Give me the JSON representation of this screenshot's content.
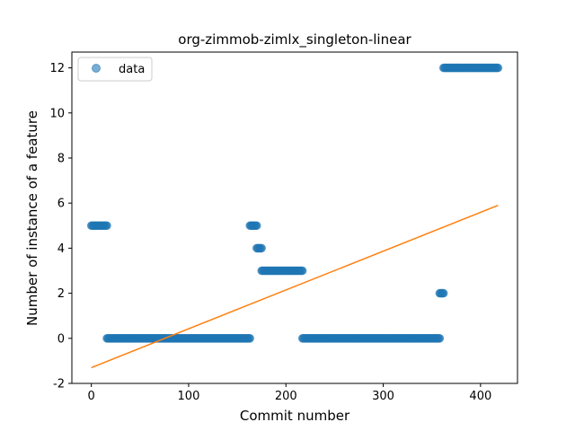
{
  "chart_data": {
    "type": "scatter",
    "title": "org-zimmob-zimlx_singleton-linear",
    "xlabel": "Commit number",
    "ylabel": "Number of instance of a feature",
    "xlim": [
      -20,
      438
    ],
    "ylim": [
      -2,
      12.7
    ],
    "xticks": [
      0,
      100,
      200,
      300,
      400
    ],
    "yticks": [
      -2,
      0,
      2,
      4,
      6,
      8,
      10,
      12
    ],
    "grid": false,
    "legend": {
      "position": "top-left",
      "entries": [
        "data"
      ]
    },
    "colors": {
      "data": "#1f77b4",
      "fit": "#ff7f0e"
    },
    "series": [
      {
        "name": "data",
        "kind": "points",
        "segments": [
          {
            "x_start": 0,
            "x_end": 16,
            "y": 5
          },
          {
            "x_start": 16,
            "x_end": 163,
            "y": 0
          },
          {
            "x_start": 163,
            "x_end": 170,
            "y": 5
          },
          {
            "x_start": 170,
            "x_end": 175,
            "y": 4
          },
          {
            "x_start": 175,
            "x_end": 217,
            "y": 3
          },
          {
            "x_start": 217,
            "x_end": 358,
            "y": 0
          },
          {
            "x_start": 358,
            "x_end": 362,
            "y": 2
          },
          {
            "x_start": 362,
            "x_end": 418,
            "y": 12
          }
        ]
      },
      {
        "kind": "fit-line",
        "x": [
          0,
          418
        ],
        "y": [
          -1.3,
          5.9
        ]
      }
    ]
  }
}
